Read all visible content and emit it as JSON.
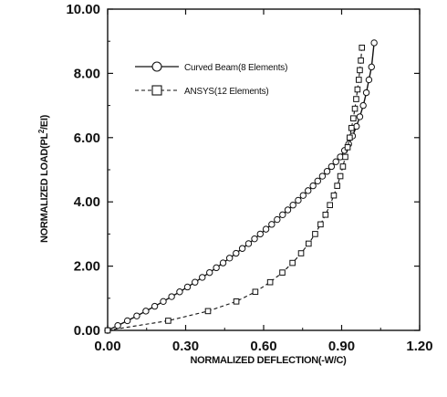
{
  "chart_data": {
    "type": "line",
    "title": "",
    "xlabel": "NORMALIZED DEFLECTION(-W/C)",
    "ylabel_prefix": "NORMALIZED LOAD(PL",
    "ylabel_sup": "2",
    "ylabel_suffix": "/EI)",
    "xlim": [
      0.0,
      1.2
    ],
    "ylim": [
      0.0,
      10.0
    ],
    "x_ticks": [
      "0.00",
      "0.30",
      "0.60",
      "0.90",
      "1.20"
    ],
    "y_ticks": [
      "0.00",
      "2.00",
      "4.00",
      "6.00",
      "8.00",
      "10.00"
    ],
    "grid": false,
    "legend_position": "top-left",
    "series": [
      {
        "name": "Curved Beam(8 Elements)",
        "line_style": "solid",
        "marker": "circle",
        "color": "#111111",
        "x": [
          0.0,
          0.039,
          0.076,
          0.112,
          0.147,
          0.181,
          0.214,
          0.246,
          0.277,
          0.307,
          0.336,
          0.364,
          0.392,
          0.418,
          0.444,
          0.469,
          0.494,
          0.518,
          0.542,
          0.565,
          0.587,
          0.609,
          0.631,
          0.652,
          0.673,
          0.693,
          0.713,
          0.733,
          0.752,
          0.771,
          0.79,
          0.808,
          0.826,
          0.844,
          0.861,
          0.878,
          0.895,
          0.911,
          0.927,
          0.942,
          0.957,
          0.97,
          0.983,
          0.995,
          1.005,
          1.015,
          1.025
        ],
        "y": [
          0.0,
          0.15,
          0.3,
          0.45,
          0.6,
          0.75,
          0.9,
          1.05,
          1.2,
          1.35,
          1.5,
          1.65,
          1.8,
          1.95,
          2.1,
          2.25,
          2.4,
          2.55,
          2.7,
          2.85,
          3.0,
          3.15,
          3.3,
          3.45,
          3.6,
          3.75,
          3.9,
          4.05,
          4.2,
          4.35,
          4.5,
          4.65,
          4.8,
          4.95,
          5.1,
          5.25,
          5.4,
          5.6,
          5.8,
          6.05,
          6.35,
          6.65,
          7.0,
          7.4,
          7.8,
          8.2,
          8.95
        ]
      },
      {
        "name": "ANSYS(12 Elements)",
        "line_style": "dashed",
        "marker": "square",
        "color": "#111111",
        "x": [
          0.0,
          0.233,
          0.386,
          0.495,
          0.568,
          0.625,
          0.672,
          0.711,
          0.744,
          0.773,
          0.798,
          0.819,
          0.838,
          0.855,
          0.87,
          0.883,
          0.895,
          0.905,
          0.914,
          0.923,
          0.931,
          0.938,
          0.945,
          0.951,
          0.956,
          0.961,
          0.966,
          0.97,
          0.974,
          0.978
        ],
        "y": [
          0.0,
          0.3,
          0.6,
          0.9,
          1.2,
          1.5,
          1.8,
          2.1,
          2.4,
          2.7,
          3.0,
          3.3,
          3.6,
          3.9,
          4.2,
          4.5,
          4.8,
          5.1,
          5.4,
          5.7,
          6.0,
          6.3,
          6.6,
          6.9,
          7.2,
          7.5,
          7.8,
          8.1,
          8.4,
          8.8
        ]
      }
    ]
  }
}
